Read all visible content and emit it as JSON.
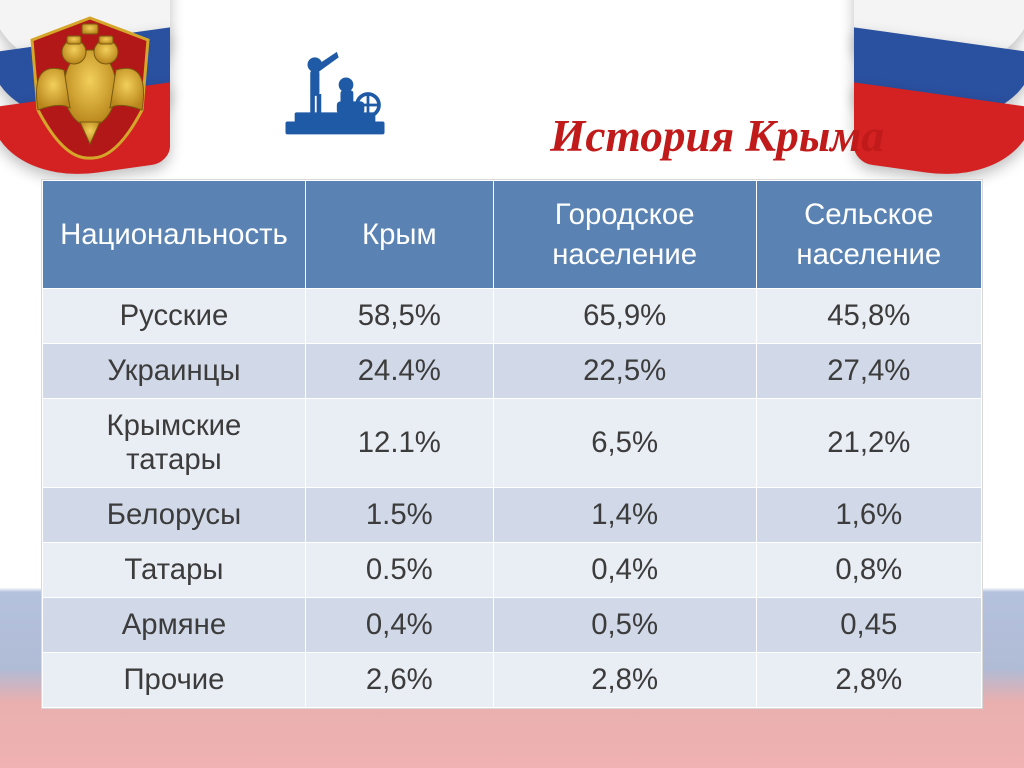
{
  "title": {
    "text": "История Крыма",
    "font_family": "'Times New Roman', serif",
    "font_style": "italic",
    "font_size_pt": 34,
    "color": "#c01a1a"
  },
  "colors": {
    "flag_white": "#f4f4f4",
    "flag_blue": "#2a50a0",
    "flag_red": "#d42222",
    "header_bg": "#5a83b4",
    "row_odd_bg": "#e9edf4",
    "row_even_bg": "#d1d9e8",
    "cell_text": "#3c3c3c",
    "coat_gold": "#d4a62a",
    "coat_red": "#b31818",
    "monument_blue": "#1e5aa6"
  },
  "table": {
    "type": "table",
    "font_size_pt": 22,
    "header_font_weight": "normal",
    "col_widths_pct": [
      28,
      20,
      28,
      24
    ],
    "columns": [
      "Национальность",
      "Крым",
      "Городское население",
      "Сельское население"
    ],
    "rows": [
      {
        "label": "Русские",
        "crimea": "58,5%",
        "urban": "65,9%",
        "rural": "45,8%"
      },
      {
        "label": "Украинцы",
        "crimea": "24.4%",
        "urban": "22,5%",
        "rural": "27,4%"
      },
      {
        "label": "Крымские татары",
        "crimea": "12.1%",
        "urban": "6,5%",
        "rural": "21,2%"
      },
      {
        "label": "Белорусы",
        "crimea": "1.5%",
        "urban": "1,4%",
        "rural": "1,6%"
      },
      {
        "label": "Татары",
        "crimea": "0.5%",
        "urban": "0,4%",
        "rural": "0,8%"
      },
      {
        "label": "Армяне",
        "crimea": "0,4%",
        "urban": "0,5%",
        "rural": "0,45"
      },
      {
        "label": "Прочие",
        "crimea": "2,6%",
        "urban": "2,8%",
        "rural": "2,8%"
      }
    ]
  }
}
